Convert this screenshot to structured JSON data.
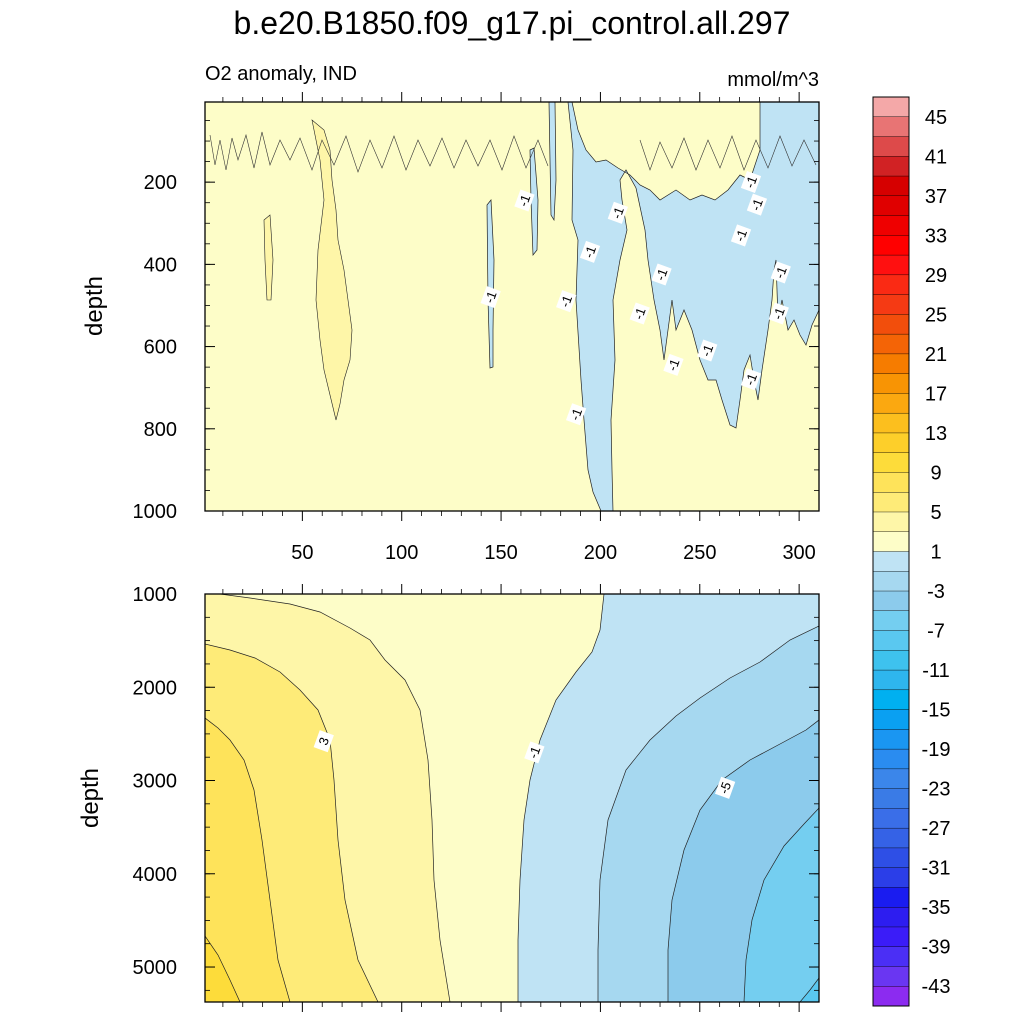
{
  "chart_data": {
    "type": "heatmap",
    "title": "b.e20.B1850.f09_g17.pi_control.all.297",
    "subtitle_left": "O2 anomaly, IND",
    "subtitle_right": "mmol/m^3",
    "colorbar": {
      "levels": [
        -45,
        -43,
        -41,
        -39,
        -37,
        -35,
        -33,
        -31,
        -29,
        -27,
        -25,
        -23,
        -21,
        -19,
        -17,
        -15,
        -13,
        -11,
        -9,
        -7,
        -5,
        -3,
        -1,
        1,
        3,
        5,
        7,
        9,
        11,
        13,
        15,
        17,
        19,
        21,
        23,
        25,
        27,
        29,
        31,
        33,
        35,
        37,
        39,
        41,
        43,
        45
      ],
      "labels": [
        "45",
        "41",
        "37",
        "33",
        "29",
        "25",
        "21",
        "17",
        "13",
        "9",
        "5",
        "1",
        "-3",
        "-7",
        "-11",
        "-15",
        "-19",
        "-23",
        "-27",
        "-31",
        "-35",
        "-39",
        "-43"
      ],
      "colors": [
        "#8c2bf0",
        "#6a36f2",
        "#4b2ff5",
        "#3b1cf8",
        "#2d1df0",
        "#1a1cf0",
        "#2b3ee8",
        "#2e4fe6",
        "#3562e6",
        "#3a6ee8",
        "#3a7be6",
        "#3b86ea",
        "#2a8cf0",
        "#1a96f2",
        "#0aa0f2",
        "#00b0f0",
        "#2eb6ee",
        "#3ec2ee",
        "#5ac8f0",
        "#74cef0",
        "#8ccbec",
        "#a6d8f0",
        "#bfe3f4",
        "#fdfdc8",
        "#fef6a8",
        "#feeb78",
        "#fee35a",
        "#fddc3a",
        "#fdcf2a",
        "#fcbf1e",
        "#fba810",
        "#f89404",
        "#f67c00",
        "#f46406",
        "#f24e0c",
        "#f53a14",
        "#fa2a14",
        "#ff1010",
        "#ff0000",
        "#ef0000",
        "#e00000",
        "#d60000",
        "#d12224",
        "#dd4a4a",
        "#e87474",
        "#f4a8a8"
      ]
    },
    "panels": [
      {
        "name": "upper",
        "x_ticks": [
          50,
          100,
          150,
          200,
          250,
          300
        ],
        "x_range": [
          1,
          310
        ],
        "y_ticks": [
          200,
          400,
          600,
          800,
          1000
        ],
        "y_range": [
          5,
          1000
        ],
        "y_reversed": true,
        "ylabel": "depth",
        "contour_labels": [
          {
            "text": "-1",
            "x": 145,
            "y": 480
          },
          {
            "text": "-1",
            "x": 162,
            "y": 245
          },
          {
            "text": "-1",
            "x": 183,
            "y": 490
          },
          {
            "text": "-1",
            "x": 195,
            "y": 370
          },
          {
            "text": "-1",
            "x": 188,
            "y": 765
          },
          {
            "text": "-1",
            "x": 209,
            "y": 275
          },
          {
            "text": "-1",
            "x": 220,
            "y": 520
          },
          {
            "text": "-1",
            "x": 231,
            "y": 425
          },
          {
            "text": "-1",
            "x": 237,
            "y": 645
          },
          {
            "text": "-1",
            "x": 254,
            "y": 610
          },
          {
            "text": "-1",
            "x": 271,
            "y": 330
          },
          {
            "text": "-1",
            "x": 276,
            "y": 200
          },
          {
            "text": "-1",
            "x": 279,
            "y": 255
          },
          {
            "text": "-1",
            "x": 276,
            "y": 680
          },
          {
            "text": "-1",
            "x": 291,
            "y": 420
          },
          {
            "text": "-1",
            "x": 290,
            "y": 520
          }
        ]
      },
      {
        "name": "lower",
        "x_range": [
          1,
          310
        ],
        "y_ticks": [
          1000,
          2000,
          3000,
          4000,
          5000
        ],
        "y_range": [
          1000,
          5375
        ],
        "y_reversed": true,
        "ylabel": "depth",
        "contour_labels": [
          {
            "text": "3",
            "x": 61,
            "y": 2580
          },
          {
            "text": "-1",
            "x": 167,
            "y": 2700
          },
          {
            "text": "-5",
            "x": 263,
            "y": 3080
          }
        ]
      }
    ]
  }
}
